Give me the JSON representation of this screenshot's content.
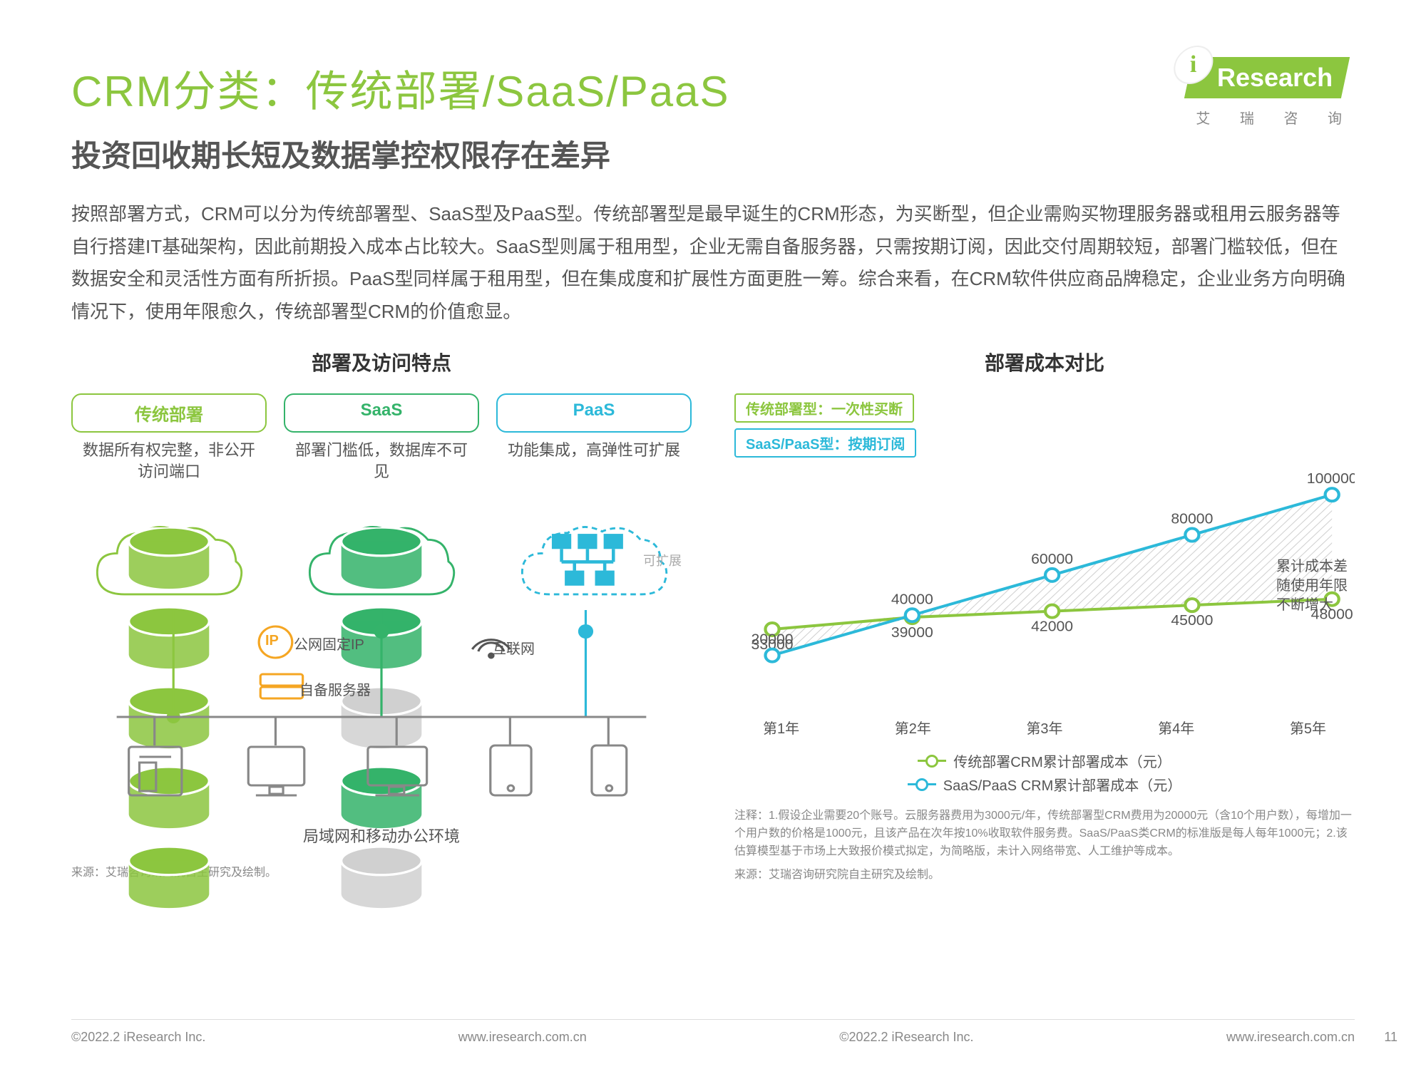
{
  "brand": {
    "name": "Research",
    "sublabel": "艾 瑞 咨 询"
  },
  "page": {
    "title": "CRM分类：传统部署/SaaS/PaaS",
    "subtitle": "投资回收期长短及数据掌控权限存在差异",
    "number": "11"
  },
  "body": "按照部署方式，CRM可以分为传统部署型、SaaS型及PaaS型。传统部署型是最早诞生的CRM形态，为买断型，但企业需购买物理服务器或租用云服务器等自行搭建IT基础架构，因此前期投入成本占比较大。SaaS型则属于租用型，企业无需自备服务器，只需按期订阅，因此交付周期较短，部署门槛较低，但在数据安全和灵活性方面有所折损。PaaS型同样属于租用型，但在集成度和扩展性方面更胜一筹。综合来看，在CRM软件供应商品牌稳定，企业业务方向明确情况下，使用年限愈久，传统部署型CRM的价值愈显。",
  "left": {
    "section_title": "部署及访问特点",
    "types": [
      {
        "label": "传统部署",
        "color": "#8cc63f",
        "desc": "数据所有权完整，非公开访问端口"
      },
      {
        "label": "SaaS",
        "color": "#34b36a",
        "desc": "部署门槛低，数据库不可见"
      },
      {
        "label": "PaaS",
        "color": "#2cb9d9",
        "desc": "功能集成，高弹性可扩展"
      }
    ],
    "extensible": "可扩展",
    "net": {
      "ip": "公网固定IP",
      "wifi": "互联网",
      "server": "自备服务器",
      "env": "局域网和移动办公环境",
      "ip_badge": "IP"
    },
    "source": "来源：艾瑞咨询研究院自主研究及绘制。"
  },
  "right": {
    "section_title": "部署成本对比",
    "legend": [
      {
        "label": "传统部署型：一次性买断",
        "color": "#8cc63f"
      },
      {
        "label": "SaaS/PaaS型：按期订阅",
        "color": "#2cb9d9"
      }
    ],
    "chart": {
      "categories": [
        "第1年",
        "第2年",
        "第3年",
        "第4年",
        "第5年"
      ],
      "series": [
        {
          "name": "传统部署CRM累计部署成本（元）",
          "color": "#8cc63f",
          "values": [
            33000,
            39000,
            42000,
            45000,
            48000
          ],
          "label_pos": "below"
        },
        {
          "name": "SaaS/PaaS CRM累计部署成本（元）",
          "color": "#2cb9d9",
          "values": [
            20000,
            40000,
            60000,
            80000,
            100000
          ],
          "label_pos": "above"
        }
      ],
      "ylim": [
        0,
        110000
      ],
      "note": "累计成本差随使用年限不断增大",
      "marker_radius": 9,
      "line_width": 4
    },
    "series_legend": [
      "传统部署CRM累计部署成本（元）",
      "SaaS/PaaS CRM累计部署成本（元）"
    ],
    "footnote": "注释：1.假设企业需要20个账号。云服务器费用为3000元/年，传统部署型CRM费用为20000元（含10个用户数），每增加一个用户数的价格是1000元，且该产品在次年按10%收取软件服务费。SaaS/PaaS类CRM的标准版是每人每年1000元；2.该估算模型基于市场上大致报价模式拟定，为简略版，未计入网络带宽、人工维护等成本。",
    "source": "来源：艾瑞咨询研究院自主研究及绘制。"
  },
  "footer": {
    "copyright": "©2022.2 iResearch Inc.",
    "url": "www.iresearch.com.cn"
  }
}
